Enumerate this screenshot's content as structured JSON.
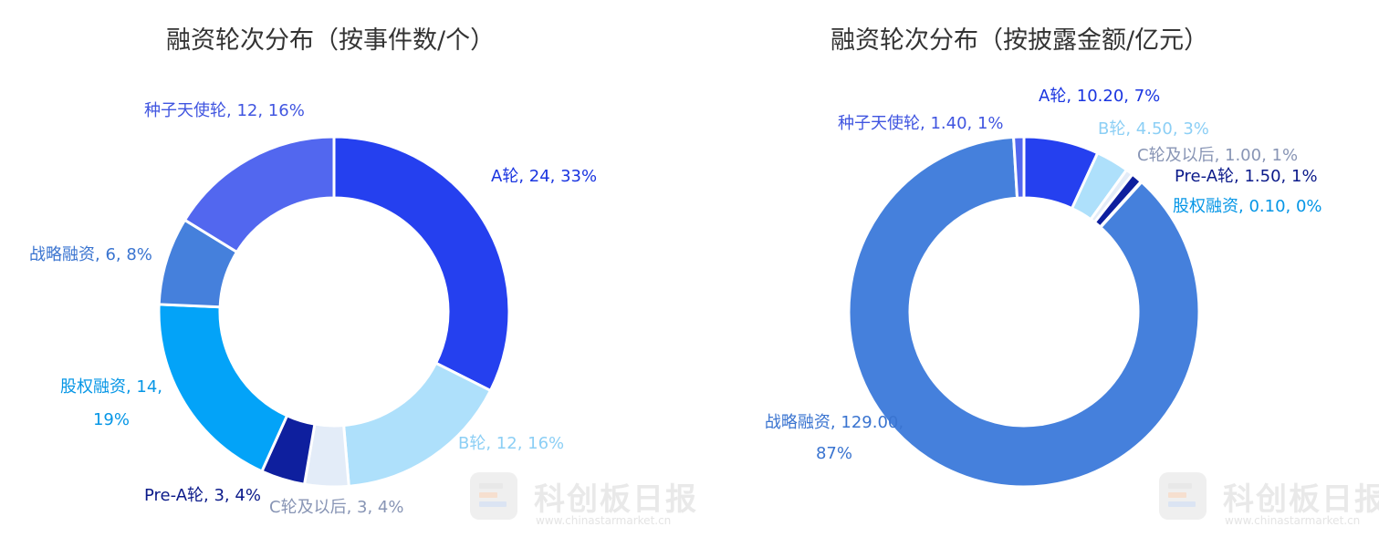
{
  "chart_data": [
    {
      "type": "pie",
      "title": "融资轮次分布（按事件数/个）",
      "donut": true,
      "categories": [
        "A轮",
        "B轮",
        "C轮及以后",
        "Pre-A轮",
        "股权融资",
        "战略融资",
        "种子天使轮"
      ],
      "values": [
        24,
        12,
        3,
        3,
        14,
        6,
        12
      ],
      "percent_labels": [
        "33%",
        "16%",
        "4%",
        "4%",
        "19%",
        "8%",
        "16%"
      ],
      "colors": [
        "#2540ef",
        "#aee0fb",
        "#e3ecf8",
        "#0e1f9e",
        "#03a3f8",
        "#4580dc",
        "#5267ef"
      ],
      "label_colors": [
        "#1a35e0",
        "#8ccff5",
        "#8895b5",
        "#0b1a8a",
        "#0596e6",
        "#3a74d0",
        "#4055e0"
      ],
      "labels": [
        "A轮, 24, 33%",
        "B轮, 12, 16%",
        "C轮及以后, 3, 4%",
        "Pre-A轮, 3, 4%",
        "股权融资, 14, 19%",
        "战略融资, 6, 8%",
        "种子天使轮, 12, 16%"
      ]
    },
    {
      "type": "pie",
      "title": "融资轮次分布（按披露金额/亿元）",
      "donut": true,
      "categories": [
        "A轮",
        "B轮",
        "C轮及以后",
        "Pre-A轮",
        "股权融资",
        "战略融资",
        "种子天使轮"
      ],
      "values": [
        10.2,
        4.5,
        1.0,
        1.5,
        0.1,
        129.0,
        1.4
      ],
      "percent_labels": [
        "7%",
        "3%",
        "1%",
        "1%",
        "0%",
        "87%",
        "1%"
      ],
      "colors": [
        "#2540ef",
        "#aee0fb",
        "#e3ecf8",
        "#0e1f9e",
        "#03a3f8",
        "#4580dc",
        "#5267ef"
      ],
      "label_colors": [
        "#1a35e0",
        "#8ccff5",
        "#8895b5",
        "#0b1a8a",
        "#0596e6",
        "#3a74d0",
        "#4055e0"
      ],
      "labels": [
        "A轮, 10.20, 7%",
        "B轮, 4.50, 3%",
        "C轮及以后, 1.00, 1%",
        "Pre-A轮, 1.50, 1%",
        "股权融资, 0.10, 0%",
        "战略融资, 129.00, 87%",
        "种子天使轮, 1.40, 1%"
      ]
    }
  ],
  "watermark": {
    "name": "科创板日报",
    "url": "www.chinastarmarket.cn"
  }
}
